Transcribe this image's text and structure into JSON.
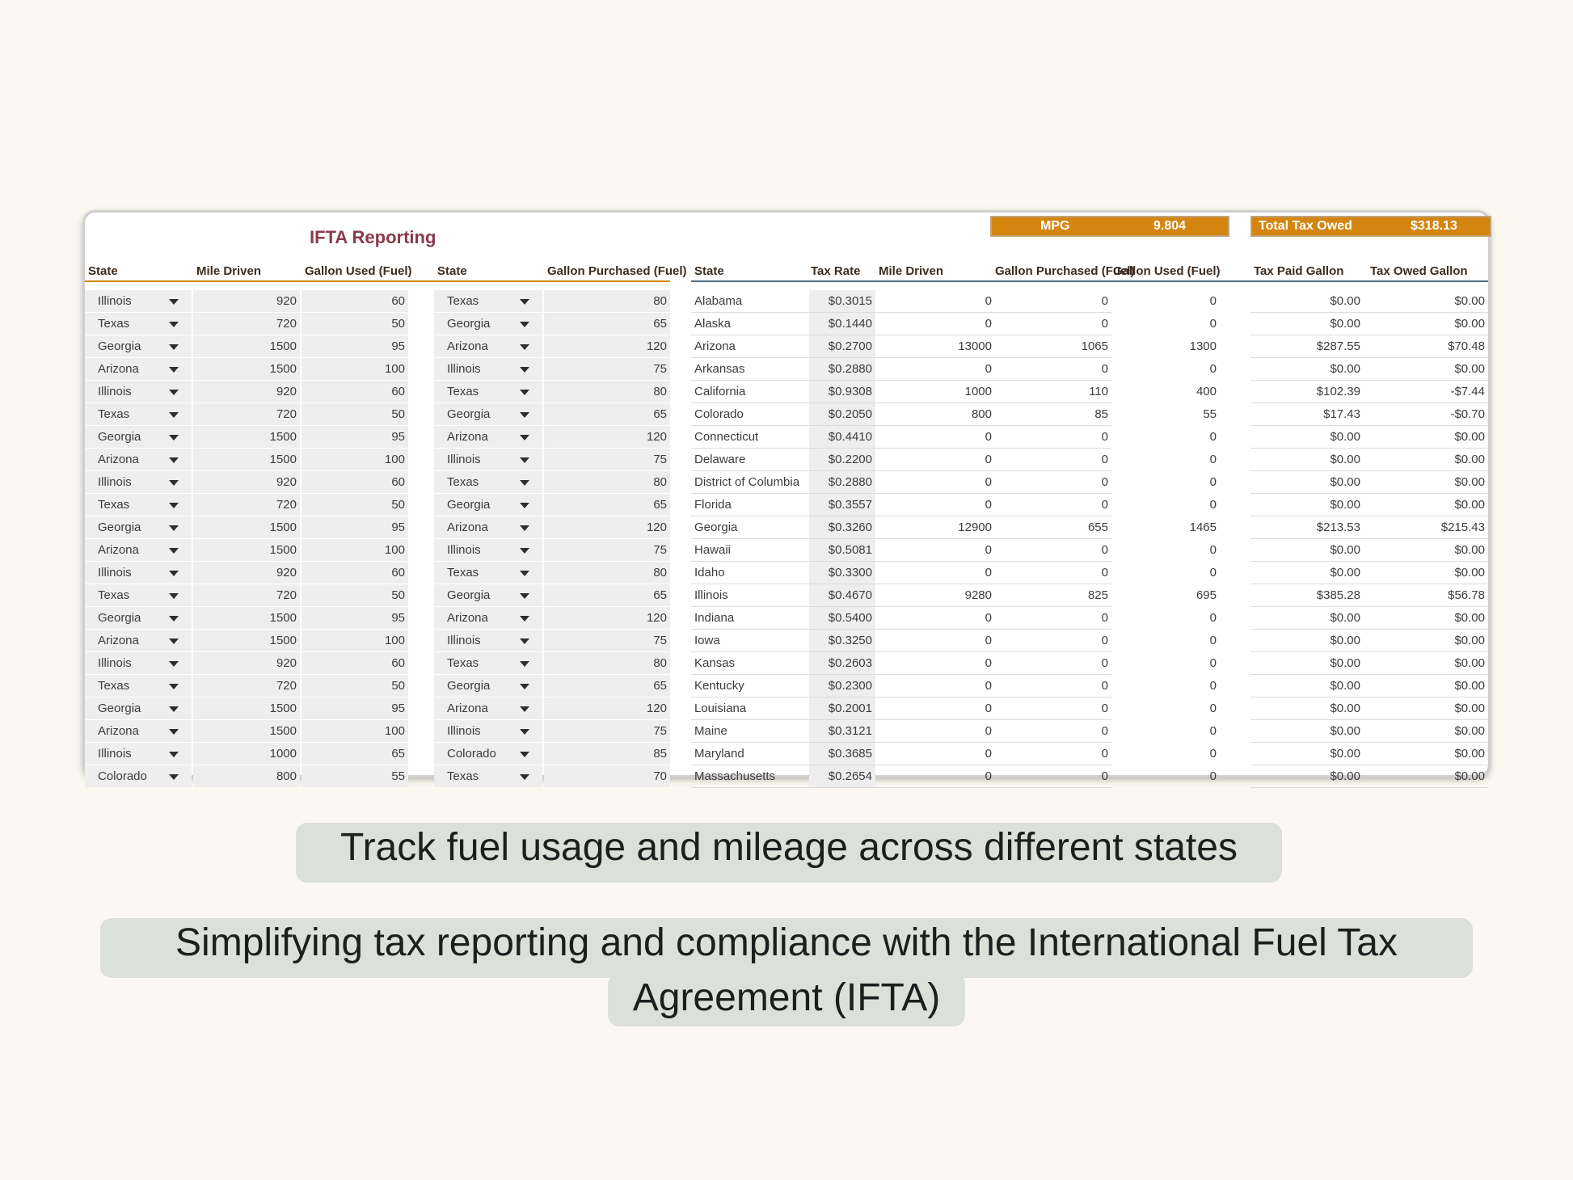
{
  "sheet": {
    "title": "IFTA Reporting",
    "mpg_label": "MPG",
    "mpg_value": "9.804",
    "total_label": "Total Tax Owed",
    "total_value": "$318.13",
    "left_headers": [
      "State",
      "Mile Driven",
      "Gallon Used (Fuel)",
      "State",
      "Gallon Purchased (Fuel)"
    ],
    "right_headers": [
      "State",
      "Tax Rate",
      "Mile Driven",
      "Gallon Purchased (Fuel)",
      "Gallon Used (Fuel)",
      "Tax Paid Gallon",
      "Tax Owed Gallon"
    ],
    "left_rows": [
      [
        "Illinois",
        "920",
        "60",
        "Texas",
        "80"
      ],
      [
        "Texas",
        "720",
        "50",
        "Georgia",
        "65"
      ],
      [
        "Georgia",
        "1500",
        "95",
        "Arizona",
        "120"
      ],
      [
        "Arizona",
        "1500",
        "100",
        "Illinois",
        "75"
      ],
      [
        "Illinois",
        "920",
        "60",
        "Texas",
        "80"
      ],
      [
        "Texas",
        "720",
        "50",
        "Georgia",
        "65"
      ],
      [
        "Georgia",
        "1500",
        "95",
        "Arizona",
        "120"
      ],
      [
        "Arizona",
        "1500",
        "100",
        "Illinois",
        "75"
      ],
      [
        "Illinois",
        "920",
        "60",
        "Texas",
        "80"
      ],
      [
        "Texas",
        "720",
        "50",
        "Georgia",
        "65"
      ],
      [
        "Georgia",
        "1500",
        "95",
        "Arizona",
        "120"
      ],
      [
        "Arizona",
        "1500",
        "100",
        "Illinois",
        "75"
      ],
      [
        "Illinois",
        "920",
        "60",
        "Texas",
        "80"
      ],
      [
        "Texas",
        "720",
        "50",
        "Georgia",
        "65"
      ],
      [
        "Georgia",
        "1500",
        "95",
        "Arizona",
        "120"
      ],
      [
        "Arizona",
        "1500",
        "100",
        "Illinois",
        "75"
      ],
      [
        "Illinois",
        "920",
        "60",
        "Texas",
        "80"
      ],
      [
        "Texas",
        "720",
        "50",
        "Georgia",
        "65"
      ],
      [
        "Georgia",
        "1500",
        "95",
        "Arizona",
        "120"
      ],
      [
        "Arizona",
        "1500",
        "100",
        "Illinois",
        "75"
      ],
      [
        "Illinois",
        "1000",
        "65",
        "Colorado",
        "85"
      ],
      [
        "Colorado",
        "800",
        "55",
        "Texas",
        "70"
      ]
    ],
    "right_rows": [
      [
        "Alabama",
        "$0.3015",
        "0",
        "0",
        "0",
        "$0.00",
        "$0.00"
      ],
      [
        "Alaska",
        "$0.1440",
        "0",
        "0",
        "0",
        "$0.00",
        "$0.00"
      ],
      [
        "Arizona",
        "$0.2700",
        "13000",
        "1065",
        "1300",
        "$287.55",
        "$70.48"
      ],
      [
        "Arkansas",
        "$0.2880",
        "0",
        "0",
        "0",
        "$0.00",
        "$0.00"
      ],
      [
        "California",
        "$0.9308",
        "1000",
        "110",
        "400",
        "$102.39",
        "-$7.44"
      ],
      [
        "Colorado",
        "$0.2050",
        "800",
        "85",
        "55",
        "$17.43",
        "-$0.70"
      ],
      [
        "Connecticut",
        "$0.4410",
        "0",
        "0",
        "0",
        "$0.00",
        "$0.00"
      ],
      [
        "Delaware",
        "$0.2200",
        "0",
        "0",
        "0",
        "$0.00",
        "$0.00"
      ],
      [
        "District of Columbia",
        "$0.2880",
        "0",
        "0",
        "0",
        "$0.00",
        "$0.00"
      ],
      [
        "Florida",
        "$0.3557",
        "0",
        "0",
        "0",
        "$0.00",
        "$0.00"
      ],
      [
        "Georgia",
        "$0.3260",
        "12900",
        "655",
        "1465",
        "$213.53",
        "$215.43"
      ],
      [
        "Hawaii",
        "$0.5081",
        "0",
        "0",
        "0",
        "$0.00",
        "$0.00"
      ],
      [
        "Idaho",
        "$0.3300",
        "0",
        "0",
        "0",
        "$0.00",
        "$0.00"
      ],
      [
        "Illinois",
        "$0.4670",
        "9280",
        "825",
        "695",
        "$385.28",
        "$56.78"
      ],
      [
        "Indiana",
        "$0.5400",
        "0",
        "0",
        "0",
        "$0.00",
        "$0.00"
      ],
      [
        "Iowa",
        "$0.3250",
        "0",
        "0",
        "0",
        "$0.00",
        "$0.00"
      ],
      [
        "Kansas",
        "$0.2603",
        "0",
        "0",
        "0",
        "$0.00",
        "$0.00"
      ],
      [
        "Kentucky",
        "$0.2300",
        "0",
        "0",
        "0",
        "$0.00",
        "$0.00"
      ],
      [
        "Louisiana",
        "$0.2001",
        "0",
        "0",
        "0",
        "$0.00",
        "$0.00"
      ],
      [
        "Maine",
        "$0.3121",
        "0",
        "0",
        "0",
        "$0.00",
        "$0.00"
      ],
      [
        "Maryland",
        "$0.3685",
        "0",
        "0",
        "0",
        "$0.00",
        "$0.00"
      ],
      [
        "Massachusetts",
        "$0.2654",
        "0",
        "0",
        "0",
        "$0.00",
        "$0.00"
      ]
    ]
  },
  "captions": {
    "line1": "Track fuel usage and mileage across different states",
    "line2a": "Simplifying tax reporting and compliance with the International Fuel Tax",
    "line2b": "Agreement (IFTA)"
  },
  "colors": {
    "accent": "#d4850f",
    "title": "#8b3a4c",
    "rule_left": "#d4850f",
    "rule_right": "#4b6f86"
  }
}
